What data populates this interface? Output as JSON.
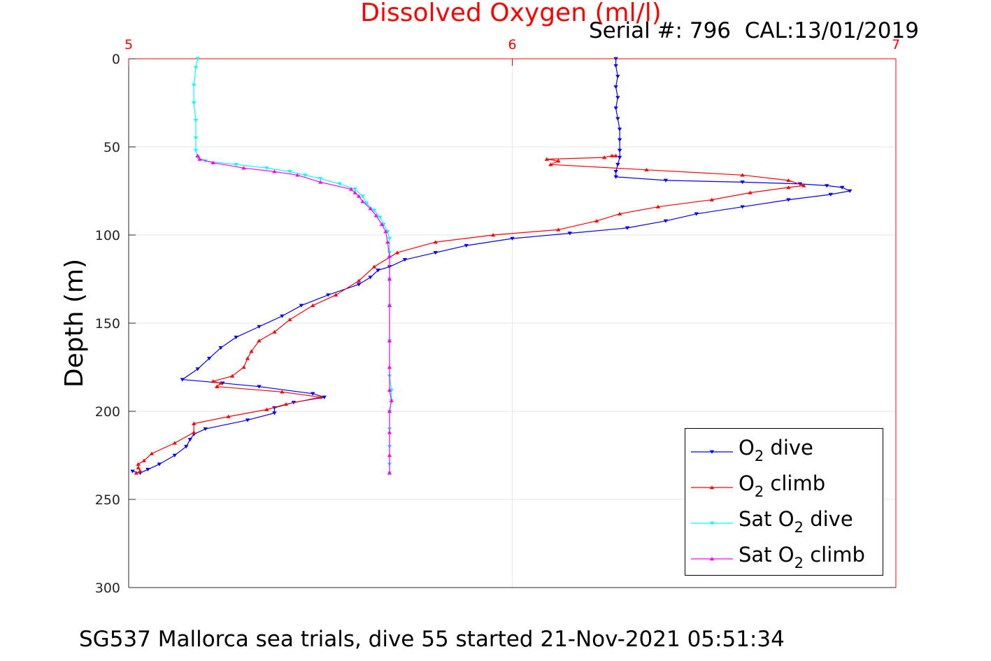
{
  "chart_data": {
    "type": "line",
    "title": "Dissolved Oxygen (ml/l)",
    "subtitle": "Serial #: 796  CAL:13/01/2019",
    "caption": "SG537 Mallorca sea trials, dive 55 started 21-Nov-2021 05:51:34",
    "ylabel": "Depth (m)",
    "xlabel": "",
    "xlim": [
      5,
      7
    ],
    "ylim": [
      0,
      300
    ],
    "y_reversed": true,
    "x_axis_position": "top",
    "x_ticks": [
      "5",
      "6",
      "7"
    ],
    "y_ticks": [
      "0",
      "50",
      "100",
      "150",
      "200",
      "250",
      "300"
    ],
    "grid": true,
    "legend_placement": "bottom-right",
    "series": [
      {
        "name": "O2 dive",
        "legend_base": "O",
        "legend_sub": "2",
        "legend_rest": " dive",
        "color": "#0000ff",
        "marker": "triangle-down",
        "points": [
          [
            6.27,
            0
          ],
          [
            6.27,
            4
          ],
          [
            6.275,
            10
          ],
          [
            6.27,
            16
          ],
          [
            6.275,
            22
          ],
          [
            6.27,
            28
          ],
          [
            6.275,
            34
          ],
          [
            6.28,
            40
          ],
          [
            6.28,
            46
          ],
          [
            6.28,
            52
          ],
          [
            6.28,
            56
          ],
          [
            6.275,
            60
          ],
          [
            6.27,
            64
          ],
          [
            6.27,
            67
          ],
          [
            6.4,
            69
          ],
          [
            6.6,
            70
          ],
          [
            6.75,
            71
          ],
          [
            6.82,
            72
          ],
          [
            6.86,
            73
          ],
          [
            6.88,
            75
          ],
          [
            6.83,
            77
          ],
          [
            6.72,
            80
          ],
          [
            6.6,
            84
          ],
          [
            6.48,
            88
          ],
          [
            6.4,
            92
          ],
          [
            6.3,
            96
          ],
          [
            6.15,
            99
          ],
          [
            6.0,
            102
          ],
          [
            5.88,
            106
          ],
          [
            5.8,
            110
          ],
          [
            5.72,
            114
          ],
          [
            5.68,
            118
          ],
          [
            5.65,
            120
          ],
          [
            5.63,
            124
          ],
          [
            5.6,
            128
          ],
          [
            5.52,
            134
          ],
          [
            5.45,
            140
          ],
          [
            5.4,
            146
          ],
          [
            5.34,
            152
          ],
          [
            5.28,
            158
          ],
          [
            5.24,
            164
          ],
          [
            5.21,
            170
          ],
          [
            5.18,
            176
          ],
          [
            5.14,
            182
          ],
          [
            5.245,
            184
          ],
          [
            5.34,
            186
          ],
          [
            5.48,
            190
          ],
          [
            5.51,
            192
          ],
          [
            5.43,
            195
          ],
          [
            5.38,
            198
          ],
          [
            5.38,
            201
          ],
          [
            5.31,
            205
          ],
          [
            5.2,
            210
          ],
          [
            5.17,
            213
          ],
          [
            5.16,
            216
          ],
          [
            5.15,
            220
          ],
          [
            5.12,
            225
          ],
          [
            5.08,
            230
          ],
          [
            5.05,
            233
          ],
          [
            5.03,
            235
          ],
          [
            5.01,
            234
          ]
        ]
      },
      {
        "name": "O2 climb",
        "legend_base": "O",
        "legend_sub": "2",
        "legend_rest": " climb",
        "color": "#ff0000",
        "marker": "triangle-up",
        "points": [
          [
            5.02,
            235
          ],
          [
            5.03,
            234
          ],
          [
            5.025,
            232
          ],
          [
            5.025,
            230
          ],
          [
            5.04,
            228
          ],
          [
            5.06,
            224
          ],
          [
            5.12,
            218
          ],
          [
            5.17,
            212
          ],
          [
            5.17,
            207
          ],
          [
            5.26,
            203
          ],
          [
            5.36,
            199
          ],
          [
            5.41,
            196
          ],
          [
            5.5,
            192
          ],
          [
            5.4,
            189
          ],
          [
            5.23,
            186
          ],
          [
            5.24,
            184
          ],
          [
            5.22,
            183
          ],
          [
            5.27,
            180
          ],
          [
            5.3,
            175
          ],
          [
            5.31,
            170
          ],
          [
            5.32,
            166
          ],
          [
            5.34,
            160
          ],
          [
            5.38,
            155
          ],
          [
            5.42,
            148
          ],
          [
            5.48,
            140
          ],
          [
            5.54,
            134
          ],
          [
            5.6,
            126
          ],
          [
            5.64,
            118
          ],
          [
            5.7,
            110
          ],
          [
            5.8,
            104
          ],
          [
            5.95,
            100
          ],
          [
            6.12,
            97
          ],
          [
            6.22,
            92
          ],
          [
            6.28,
            88
          ],
          [
            6.38,
            84
          ],
          [
            6.52,
            80
          ],
          [
            6.62,
            76
          ],
          [
            6.72,
            73
          ],
          [
            6.76,
            72
          ],
          [
            6.72,
            69
          ],
          [
            6.6,
            66
          ],
          [
            6.35,
            63
          ],
          [
            6.1,
            60
          ],
          [
            6.12,
            58
          ],
          [
            6.09,
            57
          ],
          [
            6.24,
            56
          ],
          [
            6.26,
            55
          ],
          [
            6.27,
            55
          ]
        ]
      },
      {
        "name": "Sat O2 dive",
        "legend_base": "Sat O",
        "legend_sub": "2",
        "legend_rest": " dive",
        "color": "#00ffff",
        "marker": "triangle-down",
        "points": [
          [
            5.18,
            0
          ],
          [
            5.175,
            5
          ],
          [
            5.17,
            15
          ],
          [
            5.17,
            25
          ],
          [
            5.175,
            35
          ],
          [
            5.175,
            45
          ],
          [
            5.175,
            52
          ],
          [
            5.18,
            56
          ],
          [
            5.2,
            58
          ],
          [
            5.28,
            60
          ],
          [
            5.36,
            62
          ],
          [
            5.42,
            64
          ],
          [
            5.46,
            66
          ],
          [
            5.5,
            68
          ],
          [
            5.55,
            71
          ],
          [
            5.59,
            74
          ],
          [
            5.61,
            78
          ],
          [
            5.62,
            82
          ],
          [
            5.64,
            86
          ],
          [
            5.655,
            90
          ],
          [
            5.665,
            94
          ],
          [
            5.675,
            98
          ],
          [
            5.68,
            102
          ],
          [
            5.68,
            110
          ],
          [
            5.68,
            125
          ],
          [
            5.68,
            140
          ],
          [
            5.68,
            160
          ],
          [
            5.68,
            180
          ],
          [
            5.685,
            188
          ],
          [
            5.685,
            194
          ],
          [
            5.68,
            200
          ],
          [
            5.68,
            210
          ],
          [
            5.68,
            220
          ],
          [
            5.68,
            230
          ],
          [
            5.68,
            235
          ]
        ]
      },
      {
        "name": "Sat O2 climb",
        "legend_base": "Sat O",
        "legend_sub": "2",
        "legend_rest": " climb",
        "color": "#ff00ff",
        "marker": "triangle-up",
        "points": [
          [
            5.68,
            235
          ],
          [
            5.68,
            225
          ],
          [
            5.68,
            212
          ],
          [
            5.68,
            200
          ],
          [
            5.685,
            194
          ],
          [
            5.68,
            188
          ],
          [
            5.68,
            175
          ],
          [
            5.68,
            160
          ],
          [
            5.68,
            140
          ],
          [
            5.68,
            125
          ],
          [
            5.68,
            112
          ],
          [
            5.675,
            104
          ],
          [
            5.67,
            98
          ],
          [
            5.66,
            94
          ],
          [
            5.645,
            89
          ],
          [
            5.63,
            85
          ],
          [
            5.61,
            81
          ],
          [
            5.6,
            78
          ],
          [
            5.59,
            76
          ],
          [
            5.58,
            74
          ],
          [
            5.5,
            70
          ],
          [
            5.44,
            66
          ],
          [
            5.38,
            64
          ],
          [
            5.3,
            62
          ],
          [
            5.22,
            59
          ],
          [
            5.185,
            57
          ],
          [
            5.18,
            55
          ]
        ]
      }
    ]
  }
}
